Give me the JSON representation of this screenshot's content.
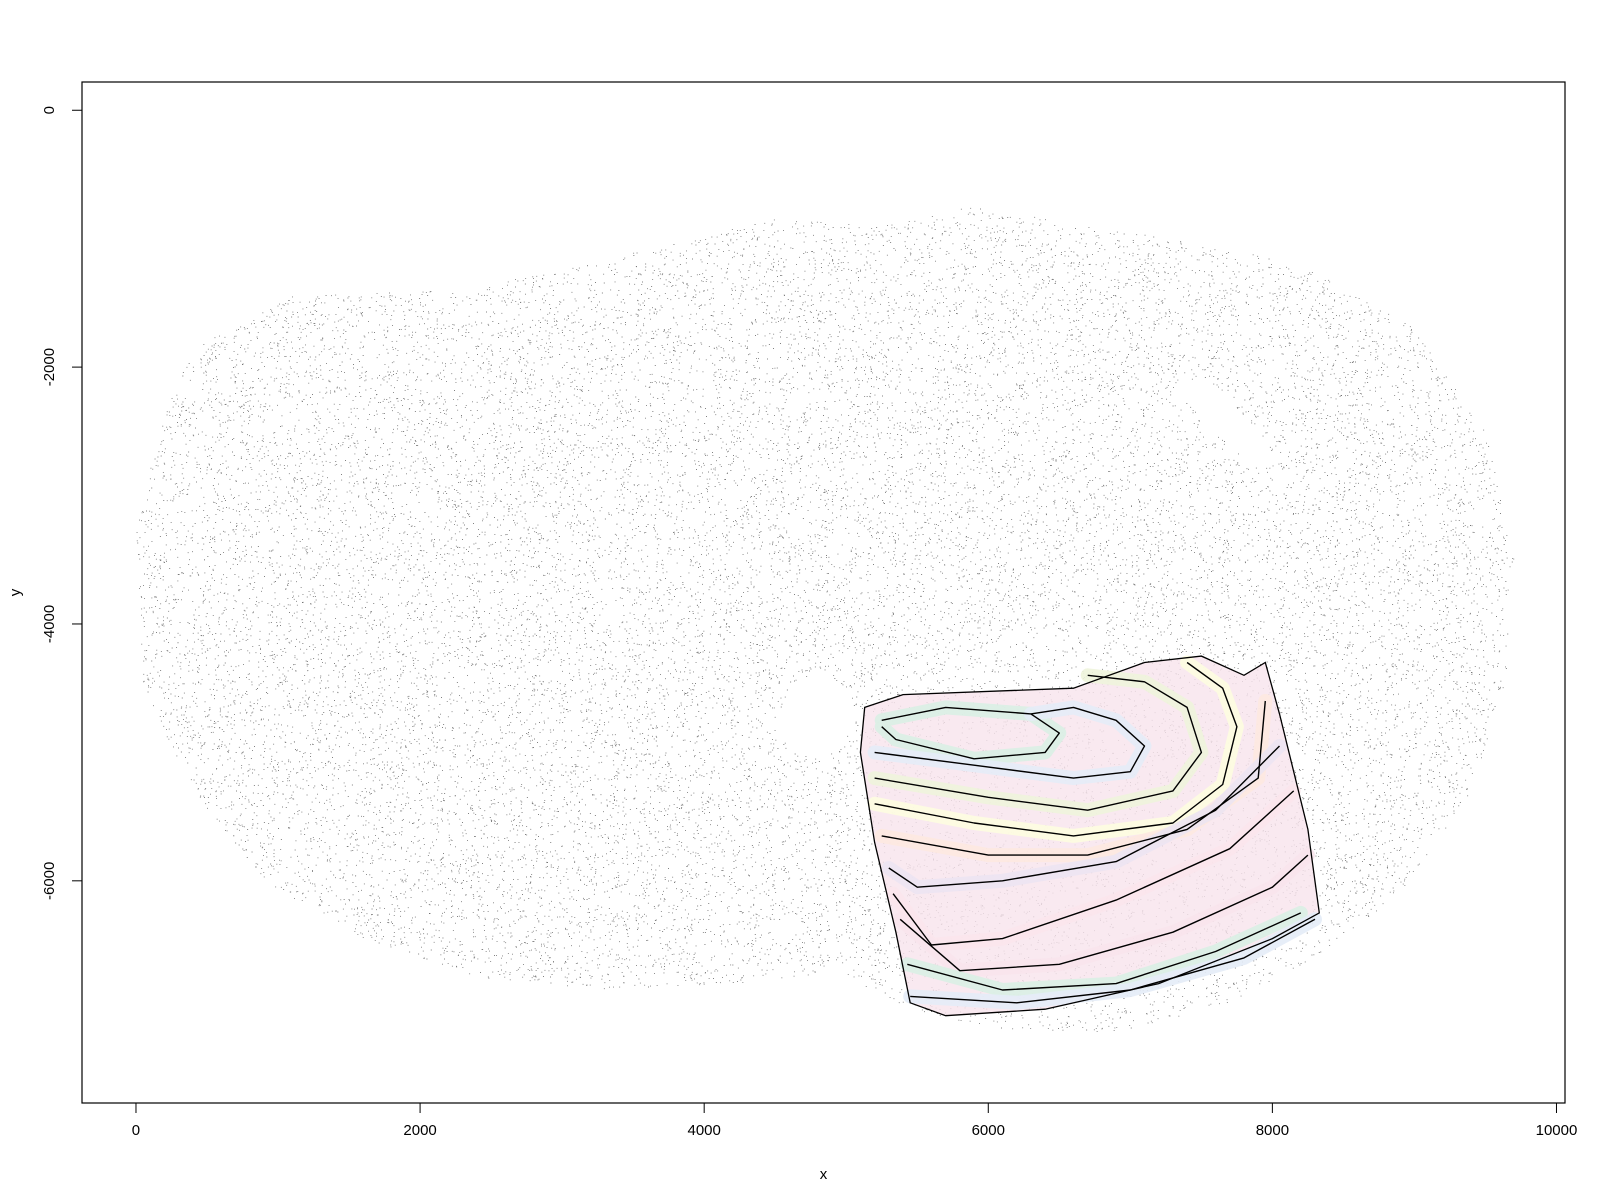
{
  "chart_data": {
    "type": "scatter",
    "title": "",
    "xlabel": "x",
    "ylabel": "y",
    "xlim": [
      -380,
      10060
    ],
    "ylim": [
      -7730,
      220
    ],
    "x_ticks": [
      0,
      2000,
      4000,
      6000,
      8000,
      10000
    ],
    "y_ticks": [
      0,
      -2000,
      -4000,
      -6000
    ],
    "x_tick_labels": [
      "0",
      "2000",
      "4000",
      "6000",
      "8000",
      "10000"
    ],
    "y_tick_labels": [
      "0",
      "-2000",
      "-4000",
      "-6000"
    ],
    "grid": false,
    "series": [
      {
        "kind": "points",
        "color": "#000000",
        "tissue_outline": [
          [
            400,
            -1850
          ],
          [
            1100,
            -1450
          ],
          [
            2300,
            -1400
          ],
          [
            3200,
            -1200
          ],
          [
            3700,
            -1050
          ],
          [
            4500,
            -850
          ],
          [
            5200,
            -900
          ],
          [
            5900,
            -750
          ],
          [
            6700,
            -900
          ],
          [
            7300,
            -1000
          ],
          [
            8200,
            -1200
          ],
          [
            9000,
            -1700
          ],
          [
            9500,
            -2500
          ],
          [
            9700,
            -3500
          ],
          [
            9650,
            -4400
          ],
          [
            9400,
            -5300
          ],
          [
            8900,
            -6100
          ],
          [
            8300,
            -6600
          ],
          [
            7600,
            -7000
          ],
          [
            6800,
            -7200
          ],
          [
            6100,
            -7150
          ],
          [
            5600,
            -7050
          ],
          [
            5250,
            -6900
          ],
          [
            4950,
            -6700
          ],
          [
            4700,
            -6750
          ],
          [
            4200,
            -6800
          ],
          [
            3300,
            -6850
          ],
          [
            2400,
            -6750
          ],
          [
            1600,
            -6450
          ],
          [
            900,
            -6000
          ],
          [
            400,
            -5300
          ],
          [
            50,
            -4500
          ],
          [
            0,
            -3300
          ],
          [
            150,
            -2500
          ]
        ],
        "holes": [
          [
            [
              4600,
              -4500
            ],
            [
              4800,
              -4350
            ],
            [
              5000,
              -4500
            ],
            [
              5050,
              -4800
            ],
            [
              4850,
              -5050
            ],
            [
              4600,
              -5000
            ],
            [
              4500,
              -4750
            ]
          ],
          [
            [
              7300,
              -2150
            ],
            [
              7550,
              -2100
            ],
            [
              7900,
              -2500
            ],
            [
              8050,
              -2750
            ],
            [
              7900,
              -2800
            ],
            [
              7550,
              -2450
            ]
          ]
        ]
      },
      {
        "kind": "contours",
        "color": "#000000",
        "fill_colors": [
          "#f8e4ec",
          "#d9efe4",
          "#e4ecf7",
          "#eef4dc",
          "#fdfde0",
          "#fde9e0",
          "#ece4f2",
          "#fbe6ec"
        ],
        "region_outline": [
          [
            5130,
            -4650
          ],
          [
            5400,
            -4550
          ],
          [
            6600,
            -4500
          ],
          [
            7100,
            -4300
          ],
          [
            7500,
            -4250
          ],
          [
            7800,
            -4400
          ],
          [
            7950,
            -4300
          ],
          [
            8050,
            -4700
          ],
          [
            8250,
            -5600
          ],
          [
            8330,
            -6250
          ],
          [
            8000,
            -6450
          ],
          [
            7200,
            -6800
          ],
          [
            6400,
            -7000
          ],
          [
            5700,
            -7050
          ],
          [
            5450,
            -6950
          ],
          [
            5350,
            -6400
          ],
          [
            5200,
            -5700
          ],
          [
            5100,
            -5000
          ]
        ],
        "lines": [
          [
            [
              5250,
              -4750
            ],
            [
              5700,
              -4650
            ],
            [
              6300,
              -4700
            ],
            [
              6500,
              -4850
            ],
            [
              6400,
              -5000
            ],
            [
              5900,
              -5050
            ],
            [
              5350,
              -4900
            ],
            [
              5250,
              -4800
            ]
          ],
          [
            [
              5200,
              -5000
            ],
            [
              5900,
              -5100
            ],
            [
              6600,
              -5200
            ],
            [
              7000,
              -5150
            ],
            [
              7100,
              -4950
            ],
            [
              6900,
              -4750
            ],
            [
              6600,
              -4650
            ],
            [
              6300,
              -4700
            ]
          ],
          [
            [
              5200,
              -5200
            ],
            [
              6000,
              -5350
            ],
            [
              6700,
              -5450
            ],
            [
              7300,
              -5300
            ],
            [
              7500,
              -5000
            ],
            [
              7400,
              -4650
            ],
            [
              7100,
              -4450
            ],
            [
              6700,
              -4400
            ]
          ],
          [
            [
              5200,
              -5400
            ],
            [
              5900,
              -5550
            ],
            [
              6600,
              -5650
            ],
            [
              7300,
              -5550
            ],
            [
              7650,
              -5250
            ],
            [
              7750,
              -4800
            ],
            [
              7650,
              -4500
            ],
            [
              7400,
              -4300
            ]
          ],
          [
            [
              5250,
              -5650
            ],
            [
              6000,
              -5800
            ],
            [
              6700,
              -5800
            ],
            [
              7400,
              -5600
            ],
            [
              7900,
              -5200
            ],
            [
              7950,
              -4600
            ]
          ],
          [
            [
              5300,
              -5900
            ],
            [
              5500,
              -6050
            ],
            [
              6100,
              -6000
            ],
            [
              6900,
              -5850
            ],
            [
              7600,
              -5450
            ],
            [
              8050,
              -4950
            ]
          ],
          [
            [
              5330,
              -6100
            ],
            [
              5600,
              -6500
            ],
            [
              6100,
              -6450
            ],
            [
              6900,
              -6150
            ],
            [
              7700,
              -5750
            ],
            [
              8150,
              -5300
            ]
          ],
          [
            [
              5380,
              -6300
            ],
            [
              5800,
              -6700
            ],
            [
              6500,
              -6650
            ],
            [
              7300,
              -6400
            ],
            [
              8000,
              -6050
            ],
            [
              8250,
              -5800
            ]
          ],
          [
            [
              5430,
              -6650
            ],
            [
              6100,
              -6850
            ],
            [
              6900,
              -6800
            ],
            [
              7600,
              -6550
            ],
            [
              8200,
              -6250
            ]
          ],
          [
            [
              5450,
              -6900
            ],
            [
              6200,
              -6950
            ],
            [
              7000,
              -6850
            ],
            [
              7800,
              -6600
            ],
            [
              8300,
              -6300
            ]
          ]
        ]
      }
    ]
  }
}
